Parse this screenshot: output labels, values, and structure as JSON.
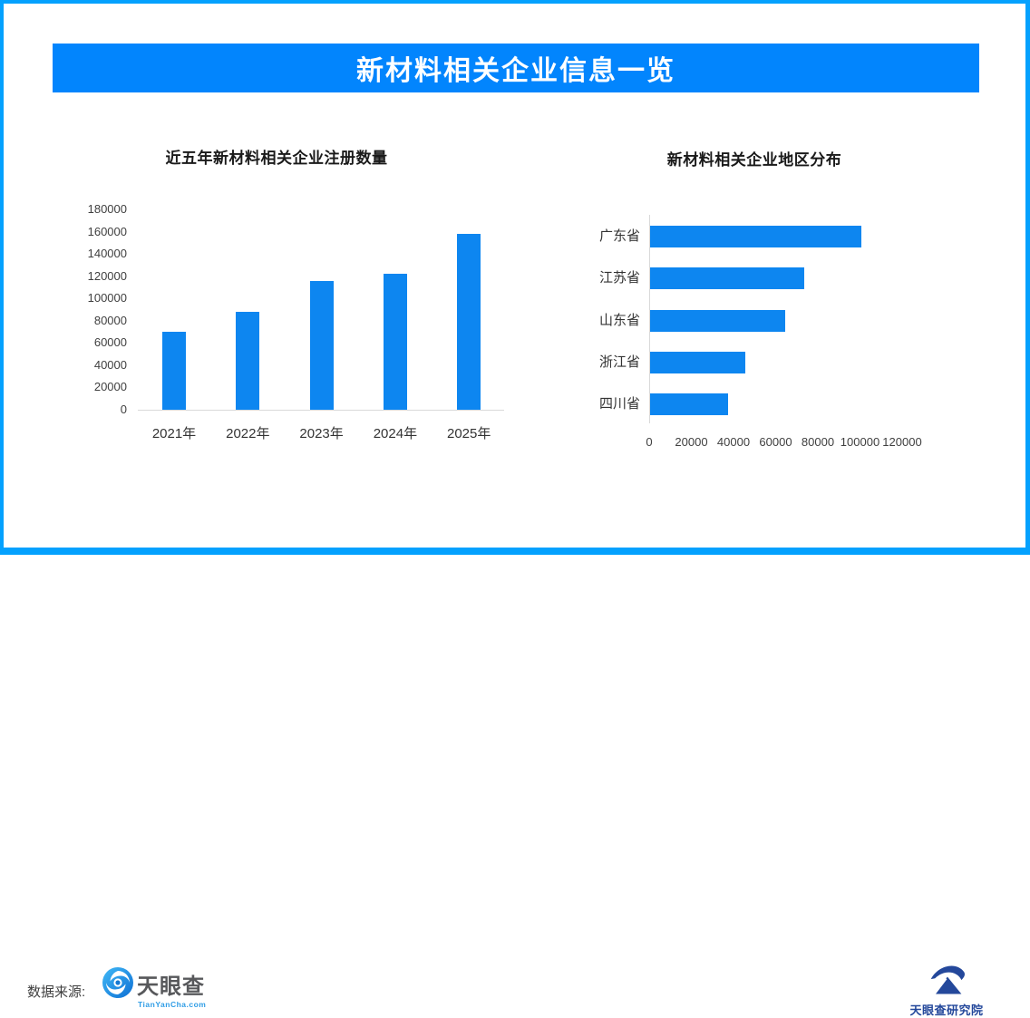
{
  "page": {
    "banner_title": "新材料相关企业信息一览"
  },
  "chart_data": [
    {
      "type": "bar",
      "orientation": "vertical",
      "title": "近五年新材料相关企业注册数量",
      "categories": [
        "2021年",
        "2022年",
        "2023年",
        "2024年",
        "2025年"
      ],
      "values": [
        70000,
        88000,
        116000,
        122000,
        158000
      ],
      "ylabel": "",
      "xlabel": "",
      "ylim": [
        0,
        180000
      ],
      "y_tick_labels": [
        "0",
        "20000",
        "40000",
        "60000",
        "80000",
        "100000",
        "120000",
        "140000",
        "160000",
        "180000"
      ],
      "grid": false,
      "legend": "none",
      "bar_color": "#0d86f0"
    },
    {
      "type": "bar",
      "orientation": "horizontal",
      "title": "新材料相关企业地区分布",
      "categories": [
        "广东省",
        "江苏省",
        "山东省",
        "浙江省",
        "四川省"
      ],
      "values": [
        100000,
        73000,
        64000,
        45000,
        37000
      ],
      "ylabel": "",
      "xlabel": "",
      "xlim": [
        0,
        120000
      ],
      "x_tick_labels": [
        "0",
        "20000",
        "40000",
        "60000",
        "80000",
        "100000",
        "120000"
      ],
      "grid": false,
      "legend": "none",
      "bar_color": "#0d86f0"
    }
  ],
  "footer": {
    "source_label": "数据来源:",
    "tianyancha_wordmark": "天眼查",
    "tianyancha_domain": "TianYanCha.com",
    "institute_label": "天眼查研究院"
  },
  "colors": {
    "frame_border": "#04a1fe",
    "banner": "#0285fd",
    "bar": "#0d86f0",
    "axis_gray": "#d9d9d9",
    "tianyancha_gray": "#57585b",
    "tianyancha_blue": "#2f9de6",
    "institute_navy": "#24489b"
  }
}
